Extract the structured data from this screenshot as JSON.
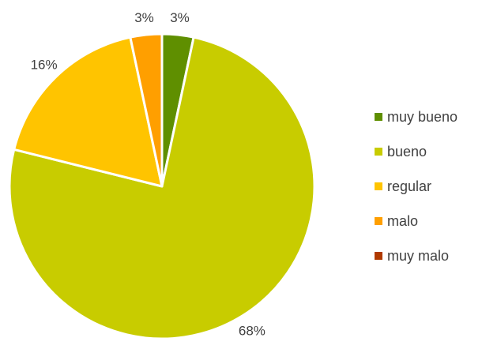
{
  "chart_data": {
    "type": "pie",
    "title": "",
    "categories": [
      "muy bueno",
      "bueno",
      "regular",
      "malo",
      "muy malo"
    ],
    "values": [
      3,
      68,
      16,
      3,
      0
    ],
    "data_labels": [
      "3%",
      "68%",
      "16%",
      "3%",
      ""
    ],
    "colors": [
      "#5f8f00",
      "#c8cc00",
      "#ffc400",
      "#ff9f00",
      "#b03a00"
    ],
    "legend_position": "right",
    "start_angle_deg": 0,
    "direction": "clockwise"
  }
}
